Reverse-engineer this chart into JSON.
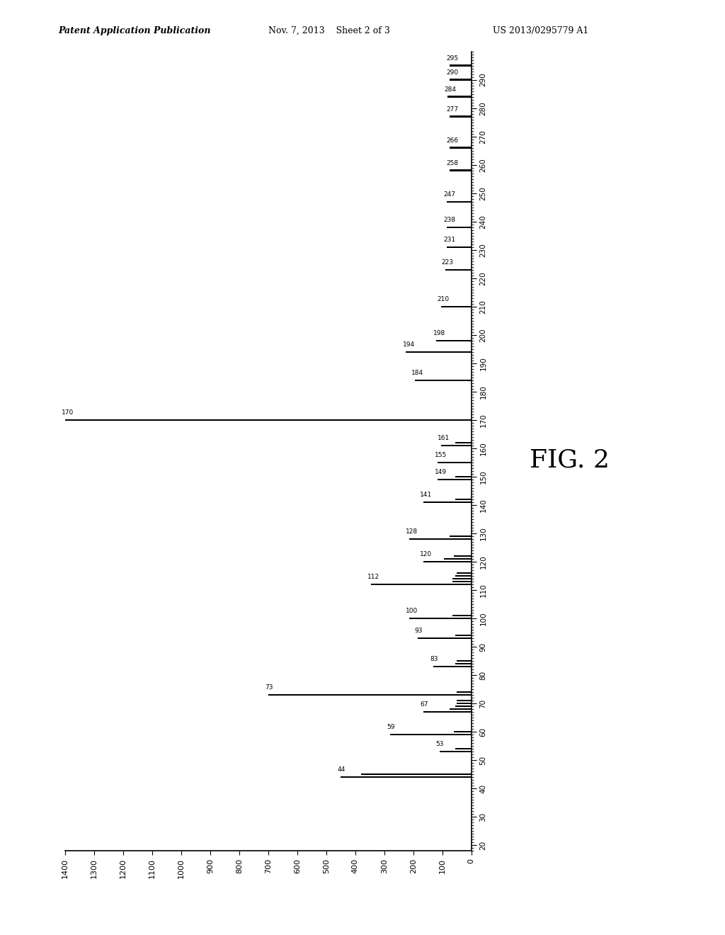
{
  "patent_header_left": "Patent Application Publication",
  "patent_header_date": "Nov. 7, 2013    Sheet 2 of 3",
  "patent_header_right": "US 2013/0295779 A1",
  "fig_label": "FIG. 2",
  "xlim": [
    0,
    1400
  ],
  "ylim": [
    18,
    300
  ],
  "ytick_major": [
    20,
    30,
    40,
    50,
    60,
    70,
    80,
    90,
    100,
    110,
    120,
    130,
    140,
    150,
    160,
    170,
    180,
    190,
    200,
    210,
    220,
    230,
    240,
    250,
    260,
    270,
    280,
    290
  ],
  "xtick_major": [
    0,
    100,
    200,
    300,
    400,
    500,
    600,
    700,
    800,
    900,
    1000,
    1100,
    1200,
    1300,
    1400
  ],
  "peaks": [
    {
      "mz": 44,
      "intensity": 450,
      "label": "44"
    },
    {
      "mz": 45,
      "intensity": 380,
      "label": ""
    },
    {
      "mz": 53,
      "intensity": 110,
      "label": "53"
    },
    {
      "mz": 54,
      "intensity": 55,
      "label": ""
    },
    {
      "mz": 59,
      "intensity": 280,
      "label": "59"
    },
    {
      "mz": 60,
      "intensity": 60,
      "label": ""
    },
    {
      "mz": 67,
      "intensity": 165,
      "label": "67"
    },
    {
      "mz": 68,
      "intensity": 75,
      "label": ""
    },
    {
      "mz": 69,
      "intensity": 55,
      "label": ""
    },
    {
      "mz": 70,
      "intensity": 50,
      "label": ""
    },
    {
      "mz": 71,
      "intensity": 50,
      "label": ""
    },
    {
      "mz": 73,
      "intensity": 700,
      "label": "73"
    },
    {
      "mz": 74,
      "intensity": 50,
      "label": ""
    },
    {
      "mz": 83,
      "intensity": 130,
      "label": "83"
    },
    {
      "mz": 84,
      "intensity": 55,
      "label": ""
    },
    {
      "mz": 85,
      "intensity": 50,
      "label": ""
    },
    {
      "mz": 93,
      "intensity": 185,
      "label": "93"
    },
    {
      "mz": 94,
      "intensity": 55,
      "label": ""
    },
    {
      "mz": 100,
      "intensity": 215,
      "label": "100"
    },
    {
      "mz": 101,
      "intensity": 65,
      "label": ""
    },
    {
      "mz": 112,
      "intensity": 345,
      "label": "112"
    },
    {
      "mz": 113,
      "intensity": 65,
      "label": ""
    },
    {
      "mz": 114,
      "intensity": 65,
      "label": ""
    },
    {
      "mz": 115,
      "intensity": 55,
      "label": ""
    },
    {
      "mz": 116,
      "intensity": 50,
      "label": ""
    },
    {
      "mz": 120,
      "intensity": 165,
      "label": "120"
    },
    {
      "mz": 121,
      "intensity": 95,
      "label": ""
    },
    {
      "mz": 122,
      "intensity": 60,
      "label": ""
    },
    {
      "mz": 128,
      "intensity": 215,
      "label": "128"
    },
    {
      "mz": 129,
      "intensity": 75,
      "label": ""
    },
    {
      "mz": 141,
      "intensity": 165,
      "label": "141"
    },
    {
      "mz": 142,
      "intensity": 55,
      "label": ""
    },
    {
      "mz": 149,
      "intensity": 115,
      "label": "149"
    },
    {
      "mz": 150,
      "intensity": 55,
      "label": ""
    },
    {
      "mz": 155,
      "intensity": 115,
      "label": "155"
    },
    {
      "mz": 161,
      "intensity": 105,
      "label": "161"
    },
    {
      "mz": 162,
      "intensity": 55,
      "label": ""
    },
    {
      "mz": 170,
      "intensity": 1400,
      "label": "170"
    },
    {
      "mz": 184,
      "intensity": 195,
      "label": "184"
    },
    {
      "mz": 194,
      "intensity": 225,
      "label": "194"
    },
    {
      "mz": 198,
      "intensity": 120,
      "label": "198"
    },
    {
      "mz": 210,
      "intensity": 105,
      "label": "210"
    },
    {
      "mz": 223,
      "intensity": 90,
      "label": "223"
    },
    {
      "mz": 231,
      "intensity": 85,
      "label": "231"
    },
    {
      "mz": 238,
      "intensity": 85,
      "label": "238"
    },
    {
      "mz": 247,
      "intensity": 85,
      "label": "247"
    },
    {
      "mz": 258,
      "intensity": 75,
      "label": "258"
    },
    {
      "mz": 266,
      "intensity": 75,
      "label": "266"
    },
    {
      "mz": 277,
      "intensity": 75,
      "label": "277"
    },
    {
      "mz": 284,
      "intensity": 82,
      "label": "284"
    },
    {
      "mz": 290,
      "intensity": 75,
      "label": "290"
    },
    {
      "mz": 295,
      "intensity": 75,
      "label": "295"
    }
  ]
}
